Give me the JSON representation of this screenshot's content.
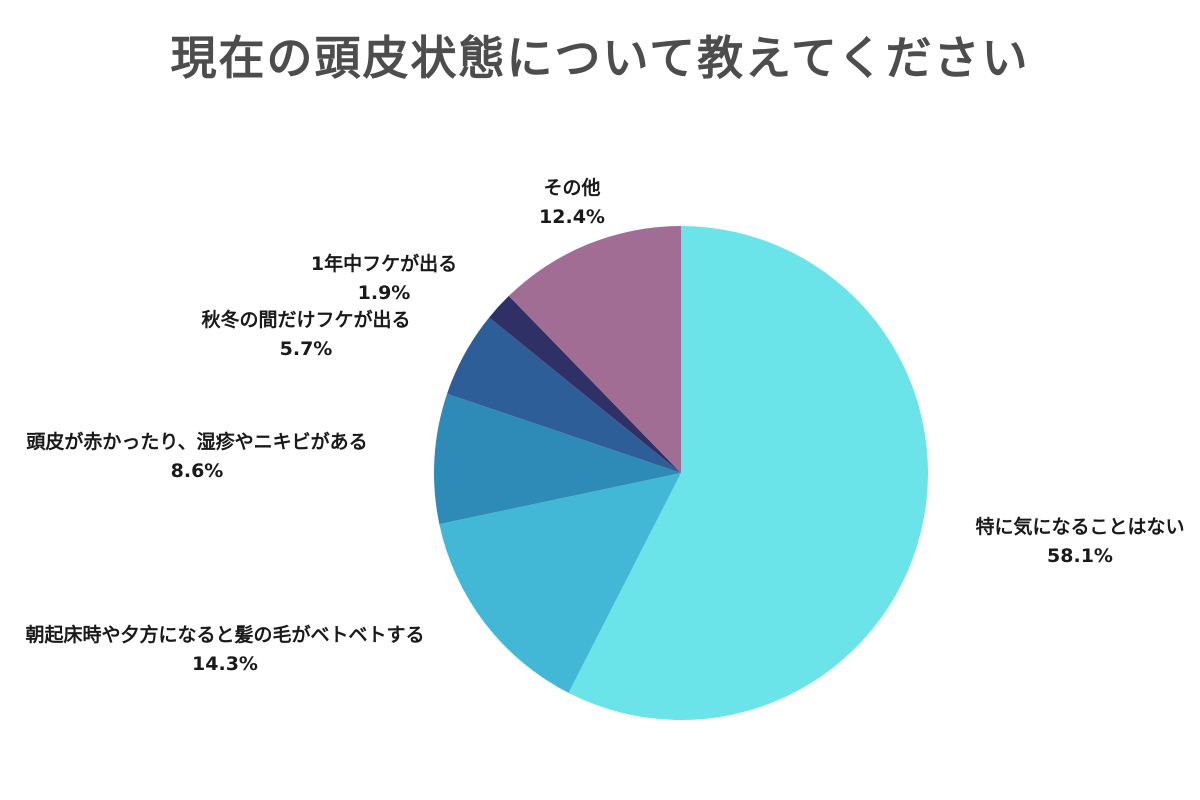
{
  "chart_data": {
    "type": "pie",
    "title": "現在の頭皮状態について教えてください",
    "start_angle_deg": 0,
    "direction": "clockwise",
    "slices": [
      {
        "label": "特に気になることはない",
        "value": 58.1,
        "value_label": "58.1%",
        "color": "#6ae4e8"
      },
      {
        "label": "朝起床時や夕方になると髪の毛がベトベトする",
        "value": 14.3,
        "value_label": "14.3%",
        "color": "#43b7d6"
      },
      {
        "label": "頭皮が赤かったり、湿疹やニキビがある",
        "value": 8.6,
        "value_label": "8.6%",
        "color": "#2e8bb8"
      },
      {
        "label": "秋冬の間だけフケが出る",
        "value": 5.7,
        "value_label": "5.7%",
        "color": "#2d5e97"
      },
      {
        "label": "1年中フケが出る",
        "value": 1.9,
        "value_label": "1.9%",
        "color": "#2f3066"
      },
      {
        "label": "その他",
        "value": 12.4,
        "value_label": "12.4%",
        "color": "#a26d94"
      }
    ]
  }
}
